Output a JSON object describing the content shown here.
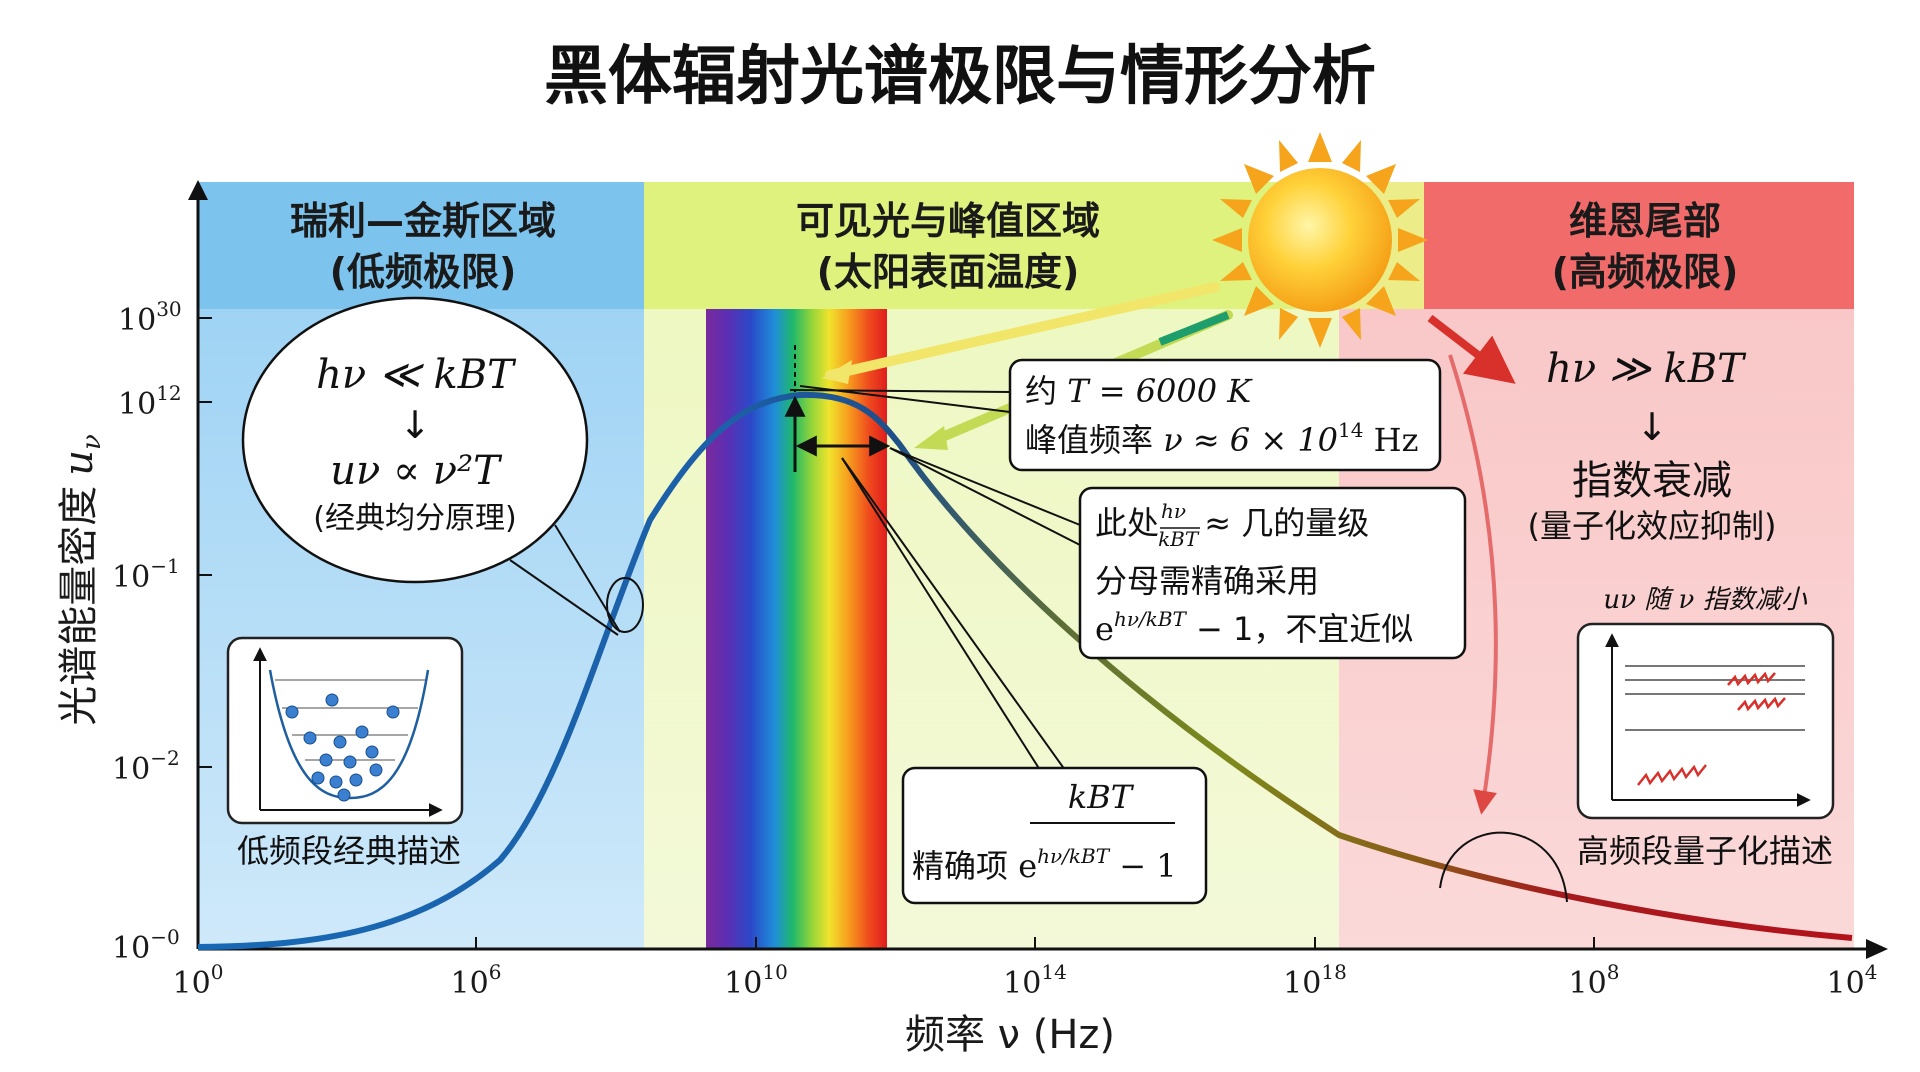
{
  "title": "黑体辐射光谱极限与情形分析",
  "regions": {
    "left": {
      "title": "瑞利—金斯区域",
      "subtitle": "(低频极限)"
    },
    "mid": {
      "title": "可见光与峰值区域",
      "subtitle": "(太阳表面温度)"
    },
    "right": {
      "title": "维恩尾部",
      "subtitle": "(高频极限)"
    }
  },
  "axes": {
    "ylabel": "光谱能量密度",
    "ylabel_symbol": "u",
    "ylabel_sub": "ν",
    "xlabel": "频率 ν (Hz)",
    "x_ticks": [
      {
        "base": "10",
        "exp": "0"
      },
      {
        "base": "10",
        "exp": "6"
      },
      {
        "base": "10",
        "exp": "10"
      },
      {
        "base": "10",
        "exp": "14"
      },
      {
        "base": "10",
        "exp": "18"
      },
      {
        "base": "10",
        "exp": "8"
      },
      {
        "base": "10",
        "exp": "4"
      }
    ],
    "y_ticks": [
      {
        "base": "10",
        "exp": "30"
      },
      {
        "base": "10",
        "exp": "12"
      },
      {
        "base": "10",
        "exp": "−1"
      },
      {
        "base": "10",
        "exp": "−2"
      },
      {
        "base": "10",
        "exp": "−0"
      }
    ]
  },
  "left_bubble": {
    "condition": "hν ≪ kBT",
    "arrow": "↓",
    "law": "uν ∝ ν²T",
    "note": "(经典均分原理)"
  },
  "left_inset": {
    "caption": "低频段经典描述"
  },
  "peak_box": {
    "line1_prefix": "约 ",
    "line1_math": "T = 6000 K",
    "line2_prefix": "峰值频率 ",
    "line2_math": "ν ≈ 6 × 10",
    "line2_exp": "14",
    "line2_unit": " Hz"
  },
  "approx_box": {
    "line1_prefix": "此处",
    "line1_frac_num": "hν",
    "line1_frac_den": "kBT",
    "line1_suffix": "≈ 几的量级",
    "line2": "分母需精确采用",
    "line3_math": "e",
    "line3_exp": "hν/kBT",
    "line3_tail": " − 1，不宜近似"
  },
  "exact_box": {
    "numerator": "kBT",
    "label": "精确项 ",
    "denominator_e": "e",
    "denominator_exp": "hν/kBT",
    "denominator_tail": " − 1"
  },
  "right_region": {
    "condition": "hν ≫ kBT",
    "arrow": "↓",
    "result": "指数衰减",
    "note": "(量子化效应抑制)"
  },
  "right_inset": {
    "label": "uν 随 ν 指数减小",
    "caption": "高频段量子化描述"
  },
  "colors": {
    "rj_blue": "#7cc3ee",
    "mid_green": "#e8f5a6",
    "wien_red": "#f26b6b",
    "curve_blue": "#1769b5",
    "curve_olive": "#7d8a1c",
    "curve_red": "#b3121b"
  }
}
